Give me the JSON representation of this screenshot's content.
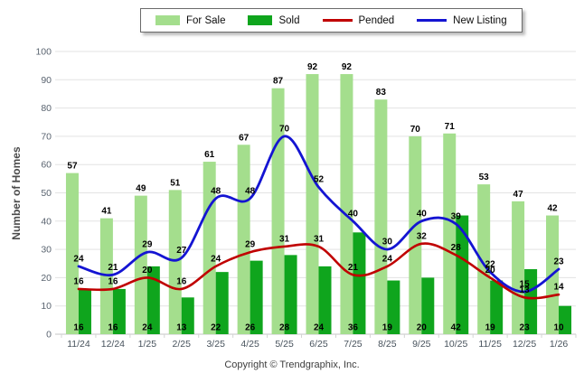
{
  "y_axis_title": "Number of Homes",
  "footer": {
    "copyright": "Copyright © Trendgraphix, Inc."
  },
  "chart_data": {
    "type": "combo",
    "categories": [
      "11/24",
      "12/24",
      "1/25",
      "2/25",
      "3/25",
      "4/25",
      "5/25",
      "6/25",
      "7/25",
      "8/25",
      "9/25",
      "10/25",
      "11/25",
      "12/25",
      "1/26"
    ],
    "series": [
      {
        "name": "For Sale",
        "type": "bar",
        "color": "#A4DE8D",
        "values": [
          57,
          41,
          49,
          51,
          61,
          67,
          87,
          92,
          92,
          83,
          70,
          71,
          53,
          47,
          42
        ]
      },
      {
        "name": "Sold",
        "type": "bar",
        "color": "#0FA51D",
        "values": [
          16,
          16,
          24,
          13,
          22,
          26,
          28,
          24,
          36,
          19,
          20,
          42,
          19,
          23,
          10
        ]
      },
      {
        "name": "Pended",
        "type": "line",
        "color": "#C00000",
        "values": [
          16,
          16,
          20,
          16,
          24,
          29,
          31,
          31,
          21,
          24,
          32,
          28,
          20,
          13,
          14
        ]
      },
      {
        "name": "New Listing",
        "type": "line",
        "color": "#1414D2",
        "values": [
          24,
          21,
          29,
          27,
          48,
          48,
          70,
          52,
          40,
          30,
          40,
          39,
          22,
          15,
          23
        ]
      }
    ],
    "title": "",
    "xlabel": "",
    "ylabel": "Number of Homes",
    "ylim": [
      0,
      100
    ],
    "ytick_step": 10,
    "grid": "horizontal",
    "legend_position": "top",
    "data_labels": true
  }
}
